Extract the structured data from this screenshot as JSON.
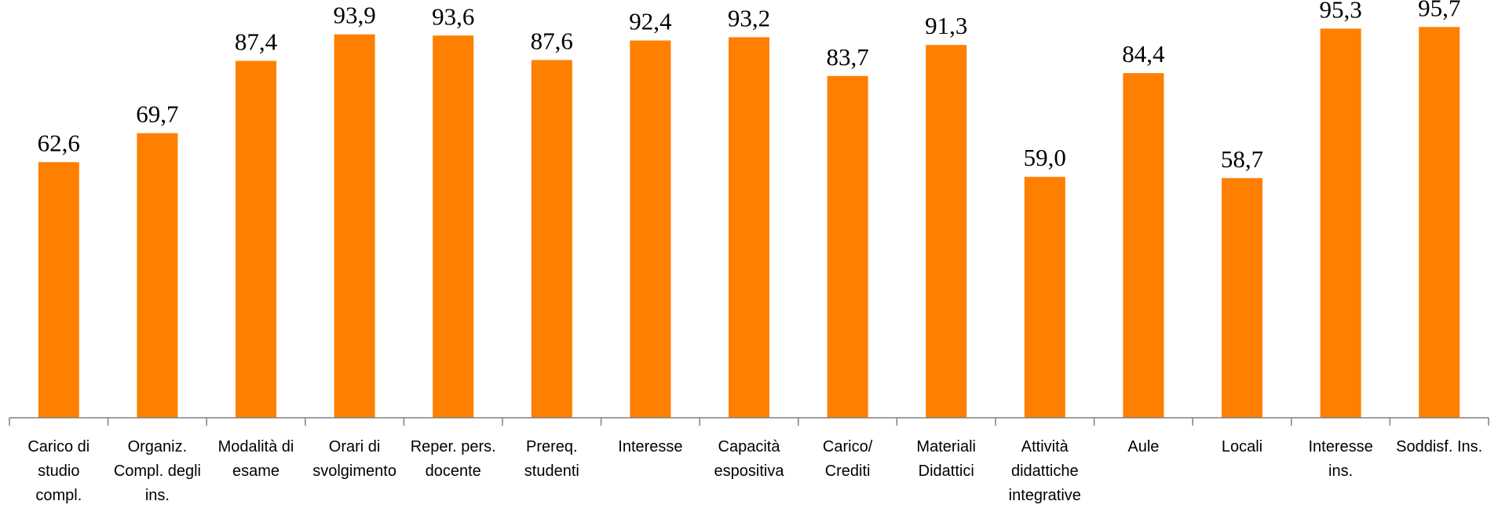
{
  "chart_data": {
    "type": "bar",
    "categories": [
      [
        "Carico di",
        "studio",
        "compl."
      ],
      [
        "Organiz.",
        "Compl. degli",
        "ins."
      ],
      [
        "Modalità di",
        "esame"
      ],
      [
        "Orari di",
        "svolgimento"
      ],
      [
        "Reper. pers.",
        "docente"
      ],
      [
        "Prereq.",
        "studenti"
      ],
      [
        "Interesse"
      ],
      [
        "Capacità",
        "espositiva"
      ],
      [
        "Carico/",
        "Crediti"
      ],
      [
        "Materiali",
        "Didattici"
      ],
      [
        "Attività",
        "didattiche",
        "integrative"
      ],
      [
        "Aule"
      ],
      [
        "Locali"
      ],
      [
        "Interesse",
        "ins."
      ],
      [
        "Soddisf. Ins."
      ]
    ],
    "values": [
      62.6,
      69.7,
      87.4,
      93.9,
      93.6,
      87.6,
      92.4,
      93.2,
      83.7,
      91.3,
      59.0,
      84.4,
      58.7,
      95.3,
      95.7
    ],
    "value_labels": [
      "62,6",
      "69,7",
      "87,4",
      "93,9",
      "93,6",
      "87,6",
      "92,4",
      "93,2",
      "83,7",
      "91,3",
      "59,0",
      "84,4",
      "58,7",
      "95,3",
      "95,7"
    ],
    "ylim": [
      0,
      100
    ],
    "grid": false,
    "legend": "none",
    "colors": {
      "bar": "#ff7f00",
      "axis": "#808080"
    }
  }
}
